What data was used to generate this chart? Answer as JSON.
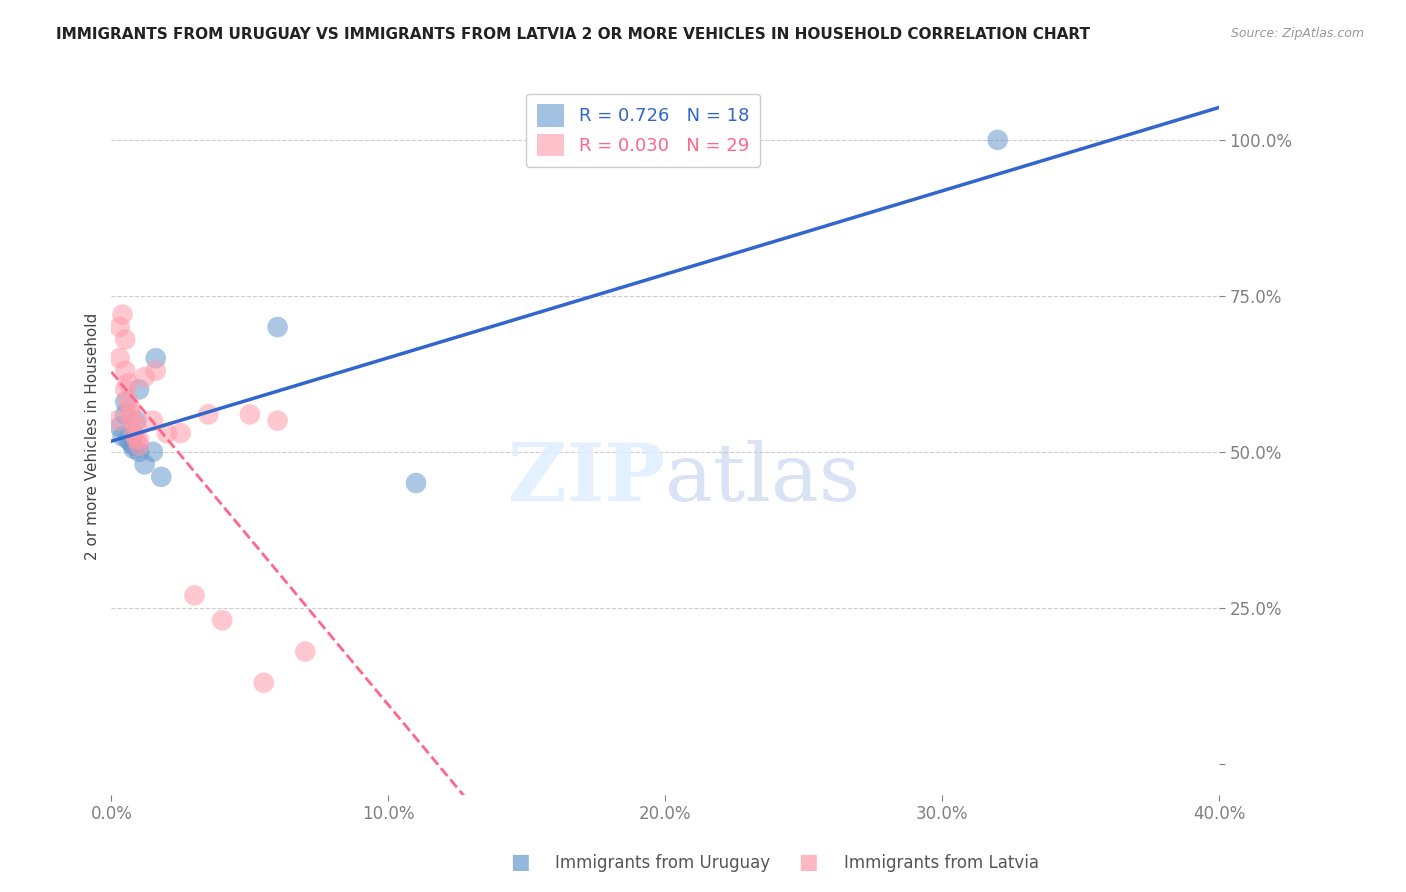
{
  "title": "IMMIGRANTS FROM URUGUAY VS IMMIGRANTS FROM LATVIA 2 OR MORE VEHICLES IN HOUSEHOLD CORRELATION CHART",
  "source": "Source: ZipAtlas.com",
  "ylabel": "2 or more Vehicles in Household",
  "xlim": [
    0.0,
    0.4
  ],
  "ylim": [
    -0.05,
    1.1
  ],
  "legend1_label": "R = 0.726   N = 18",
  "legend2_label": "R = 0.030   N = 29",
  "legend_bottom1": "Immigrants from Uruguay",
  "legend_bottom2": "Immigrants from Latvia",
  "blue_color": "#6699CC",
  "pink_color": "#FF99AA",
  "blue_line_color": "#3366CC",
  "pink_line_color": "#FF6688",
  "watermark_zip": "ZIP",
  "watermark_atlas": "atlas",
  "uruguay_x": [
    0.005,
    0.005,
    0.003,
    0.004,
    0.006,
    0.007,
    0.008,
    0.008,
    0.009,
    0.01,
    0.01,
    0.012,
    0.015,
    0.016,
    0.018,
    0.06,
    0.11,
    0.32
  ],
  "uruguay_y": [
    0.58,
    0.56,
    0.54,
    0.525,
    0.52,
    0.515,
    0.51,
    0.505,
    0.55,
    0.6,
    0.5,
    0.48,
    0.5,
    0.65,
    0.46,
    0.7,
    0.45,
    1.0
  ],
  "latvia_x": [
    0.002,
    0.003,
    0.003,
    0.004,
    0.005,
    0.005,
    0.005,
    0.006,
    0.006,
    0.007,
    0.007,
    0.008,
    0.008,
    0.009,
    0.009,
    0.01,
    0.01,
    0.012,
    0.015,
    0.016,
    0.02,
    0.025,
    0.03,
    0.035,
    0.04,
    0.05,
    0.055,
    0.06,
    0.07
  ],
  "latvia_y": [
    0.55,
    0.7,
    0.65,
    0.72,
    0.68,
    0.63,
    0.6,
    0.61,
    0.58,
    0.57,
    0.56,
    0.55,
    0.53,
    0.54,
    0.52,
    0.52,
    0.51,
    0.62,
    0.55,
    0.63,
    0.53,
    0.53,
    0.27,
    0.56,
    0.23,
    0.56,
    0.13,
    0.55,
    0.18
  ]
}
